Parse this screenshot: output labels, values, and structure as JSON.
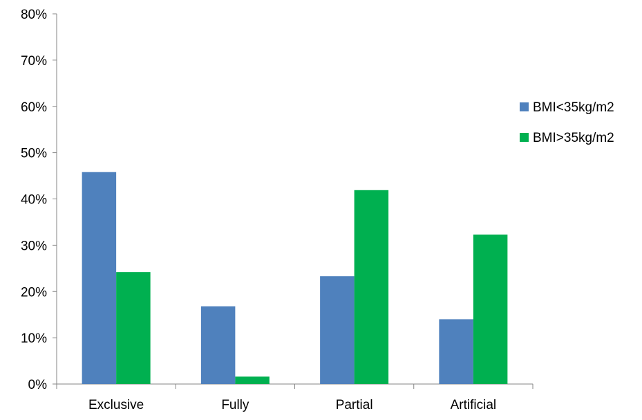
{
  "chart_data": {
    "type": "bar",
    "title": "",
    "xlabel": "",
    "ylabel": "",
    "categories": [
      "Exclusive",
      "Fully",
      "Partial",
      "Artificial"
    ],
    "series": [
      {
        "name": "BMI<35kg/m2",
        "color": "#4F81BD",
        "values": [
          45.8,
          16.8,
          23.3,
          14.0
        ]
      },
      {
        "name": "BMI>35kg/m2",
        "color": "#00B050",
        "values": [
          24.2,
          1.6,
          41.9,
          32.3
        ]
      }
    ],
    "ylim": [
      0,
      80
    ],
    "yticks": [
      0,
      10,
      20,
      30,
      40,
      50,
      60,
      70,
      80
    ],
    "ytick_format": "percent",
    "grid": false,
    "legend_position": "right"
  }
}
